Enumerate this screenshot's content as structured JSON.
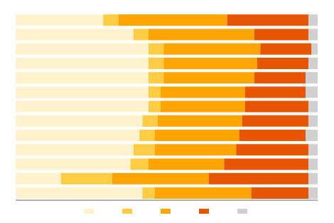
{
  "chart_data": {
    "type": "bar",
    "orientation": "horizontal",
    "stacked": true,
    "categories": [
      null,
      null,
      null,
      null,
      null,
      null,
      null,
      null,
      null,
      null,
      null,
      null,
      null
    ],
    "series": [
      {
        "color": "#FFF2CC",
        "values": [
          29,
          39,
          44,
          44,
          44,
          44,
          44,
          42,
          41,
          39,
          38,
          15,
          42
        ]
      },
      {
        "color": "#FFCC44",
        "values": [
          5,
          5,
          5,
          5,
          5,
          4,
          4,
          5,
          5,
          7,
          6,
          17,
          4
        ]
      },
      {
        "color": "#FFA500",
        "values": [
          36,
          35,
          32,
          31,
          30,
          28,
          28,
          28,
          28,
          27,
          25,
          32,
          32
        ]
      },
      {
        "color": "#E85500",
        "values": [
          27,
          18,
          17,
          17,
          17,
          20,
          21,
          22,
          22,
          24,
          28,
          33,
          19
        ]
      },
      {
        "color": "#D0D0D0",
        "values": [
          3,
          3,
          2,
          3,
          4,
          4,
          3,
          3,
          4,
          3,
          3,
          3,
          3
        ]
      }
    ],
    "xlim": [
      0,
      100
    ],
    "tick_labels": false,
    "grid": false,
    "legend": "bottom"
  }
}
